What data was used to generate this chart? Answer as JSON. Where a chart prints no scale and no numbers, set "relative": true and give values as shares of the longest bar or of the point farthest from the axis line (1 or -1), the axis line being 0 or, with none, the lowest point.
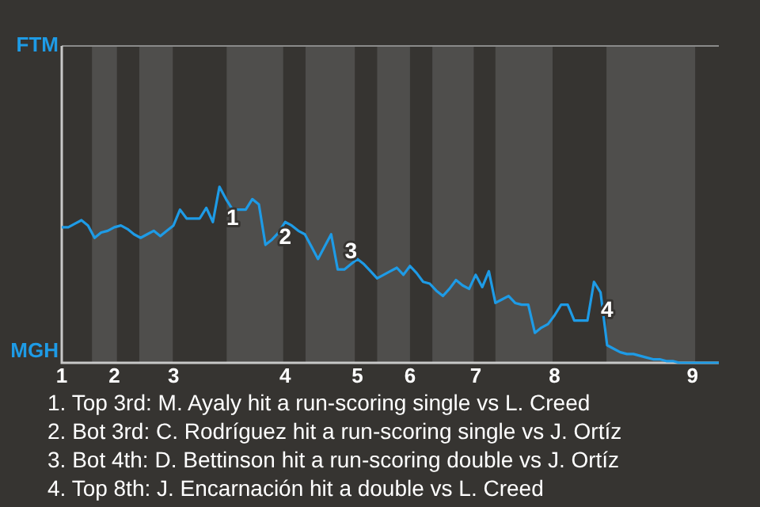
{
  "chart_data": {
    "type": "line",
    "relative": true,
    "categories": [
      "1",
      null,
      null,
      null,
      null,
      null,
      null,
      null,
      "2",
      null,
      null,
      null,
      null,
      null,
      null,
      null,
      null,
      "3",
      null,
      null,
      null,
      null,
      null,
      null,
      null,
      null,
      null,
      null,
      null,
      null,
      null,
      null,
      null,
      null,
      "4",
      null,
      null,
      null,
      null,
      null,
      null,
      null,
      null,
      null,
      null,
      "5",
      null,
      null,
      null,
      null,
      null,
      null,
      null,
      "6",
      null,
      null,
      null,
      null,
      null,
      null,
      null,
      null,
      null,
      "7",
      null,
      null,
      null,
      null,
      null,
      null,
      null,
      null,
      null,
      null,
      null,
      "8",
      null,
      null,
      null,
      null,
      null,
      null,
      null,
      null,
      null,
      null,
      null,
      null,
      null,
      null,
      null,
      null,
      null,
      null,
      null,
      null,
      "9",
      null,
      null,
      null,
      null
    ],
    "series": [
      {
        "color": "#1e9be6",
        "values": [
          0.77,
          0.77,
          0.79,
          0.81,
          0.78,
          0.71,
          0.74,
          0.75,
          0.77,
          0.78,
          0.76,
          0.73,
          0.71,
          0.73,
          0.75,
          0.72,
          0.75,
          0.78,
          0.87,
          0.82,
          0.82,
          0.82,
          0.88,
          0.8,
          1,
          0.93,
          0.87,
          0.87,
          0.87,
          0.93,
          0.9,
          0.67,
          0.7,
          0.74,
          0.8,
          0.78,
          0.75,
          0.73,
          0.66,
          0.59,
          0.66,
          0.73,
          0.53,
          0.53,
          0.56,
          0.59,
          0.56,
          0.52,
          0.48,
          0.5,
          0.52,
          0.54,
          0.5,
          0.55,
          0.51,
          0.46,
          0.45,
          0.41,
          0.38,
          0.42,
          0.47,
          0.44,
          0.42,
          0.5,
          0.43,
          0.52,
          0.34,
          0.36,
          0.38,
          0.34,
          0.33,
          0.33,
          0.17,
          0.2,
          0.22,
          0.27,
          0.33,
          0.33,
          0.24,
          0.24,
          0.24,
          0.46,
          0.4,
          0.1,
          0.08,
          0.06,
          0.05,
          0.05,
          0.04,
          0.03,
          0.02,
          0.02,
          0.01,
          0.01,
          0,
          0,
          0,
          0,
          0,
          0,
          0
        ]
      }
    ],
    "legend": false,
    "marker": "none",
    "line_style": "solid",
    "annotations": [
      "FTM",
      "MGH",
      "1",
      "2",
      "3",
      "4",
      "1. Top 3rd: M. Ayaly hit a run-scoring single vs L. Creed",
      "2. Bot 3rd: C. Rodríguez hit a run-scoring single vs J. Ortíz",
      "3. Bot 4th: D. Bettinson hit a run-scoring double vs J. Ortíz",
      "4. Top 8th: J. Encarnación hit a double vs L. Creed"
    ]
  }
}
